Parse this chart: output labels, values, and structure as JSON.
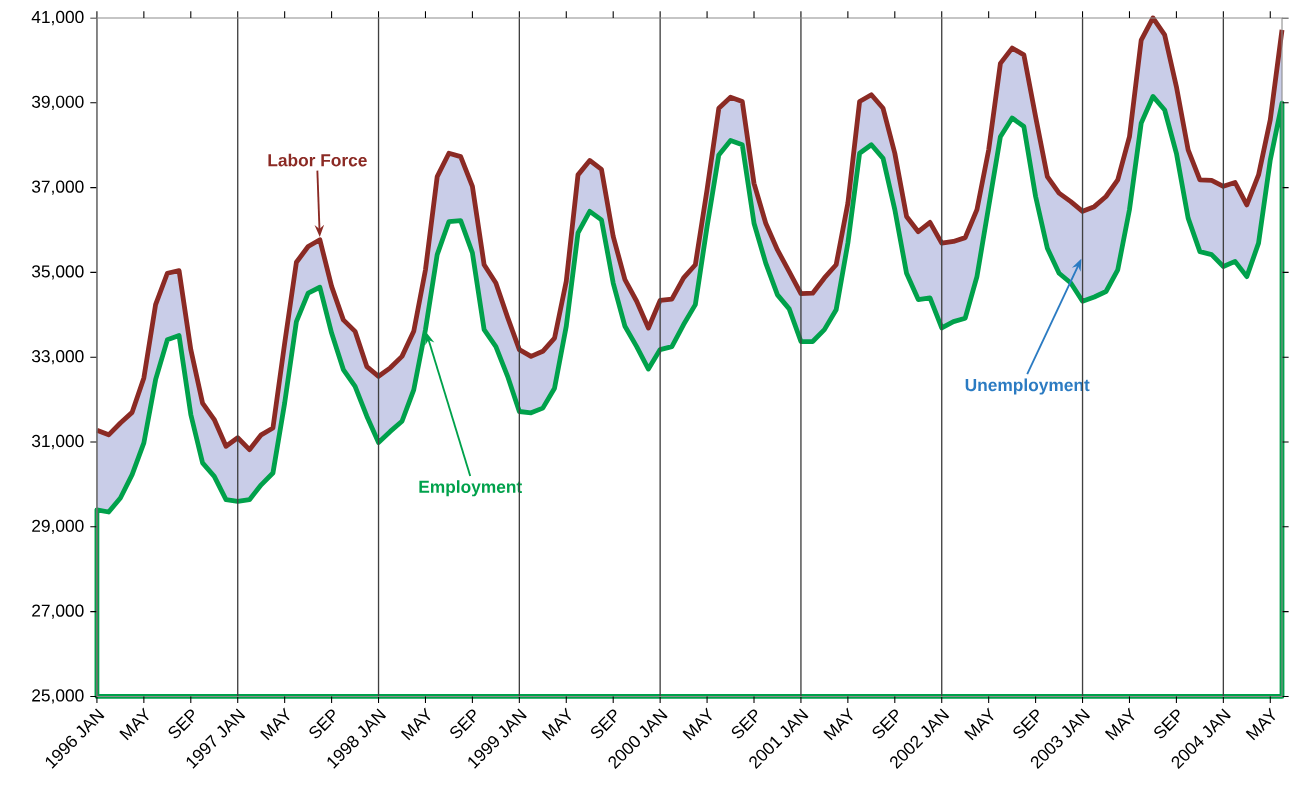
{
  "chart_data": {
    "type": "line",
    "grid": "x",
    "annotations": [
      "Unemployment"
    ],
    "x": [
      "1996-01",
      "1996-02",
      "1996-03",
      "1996-04",
      "1996-05",
      "1996-06",
      "1996-07",
      "1996-08",
      "1996-09",
      "1996-10",
      "1996-11",
      "1996-12",
      "1997-01",
      "1997-02",
      "1997-03",
      "1997-04",
      "1997-05",
      "1997-06",
      "1997-07",
      "1997-08",
      "1997-09",
      "1997-10",
      "1997-11",
      "1997-12",
      "1998-01",
      "1998-02",
      "1998-03",
      "1998-04",
      "1998-05",
      "1998-06",
      "1998-07",
      "1998-08",
      "1998-09",
      "1998-10",
      "1998-11",
      "1998-12",
      "1999-01",
      "1999-02",
      "1999-03",
      "1999-04",
      "1999-05",
      "1999-06",
      "1999-07",
      "1999-08",
      "1999-09",
      "1999-10",
      "1999-11",
      "1999-12",
      "2000-01",
      "2000-02",
      "2000-03",
      "2000-04",
      "2000-05",
      "2000-06",
      "2000-07",
      "2000-08",
      "2000-09",
      "2000-10",
      "2000-11",
      "2000-12",
      "2001-01",
      "2001-02",
      "2001-03",
      "2001-04",
      "2001-05",
      "2001-06",
      "2001-07",
      "2001-08",
      "2001-09",
      "2001-10",
      "2001-11",
      "2001-12",
      "2002-01",
      "2002-02",
      "2002-03",
      "2002-04",
      "2002-05",
      "2002-06",
      "2002-07",
      "2002-08",
      "2002-09",
      "2002-10",
      "2002-11",
      "2002-12",
      "2003-01",
      "2003-02",
      "2003-03",
      "2003-04",
      "2003-05",
      "2003-06",
      "2003-07",
      "2003-08",
      "2003-09",
      "2003-10",
      "2003-11",
      "2003-12",
      "2004-01",
      "2004-02",
      "2004-03",
      "2004-04",
      "2004-05",
      "2004-06"
    ],
    "series": [
      {
        "name": "Employment",
        "type": "area",
        "color": "#00a14b",
        "values": [
          29400,
          29350,
          29680,
          30230,
          30980,
          32470,
          33410,
          33510,
          31650,
          30510,
          30190,
          29640,
          29600,
          29640,
          29990,
          30270,
          31920,
          33840,
          34510,
          34650,
          33570,
          32710,
          32310,
          31610,
          30990,
          31250,
          31490,
          32230,
          33650,
          35420,
          36200,
          36220,
          35460,
          33650,
          33250,
          32550,
          31720,
          31690,
          31800,
          32270,
          33730,
          35930,
          36440,
          36240,
          34750,
          33730,
          33250,
          32720,
          33180,
          33250,
          33770,
          34240,
          36080,
          37770,
          38110,
          38010,
          36160,
          35220,
          34470,
          34140,
          33370,
          33370,
          33650,
          34120,
          35690,
          37810,
          38010,
          37690,
          36480,
          34980,
          34360,
          34400,
          33690,
          33840,
          33920,
          34900,
          36550,
          38200,
          38640,
          38440,
          36790,
          35570,
          34980,
          34750,
          34320,
          34420,
          34550,
          35060,
          36480,
          38520,
          39150,
          38830,
          37810,
          36280,
          35490,
          35420,
          35140,
          35260,
          34900,
          35690,
          37650,
          38990
        ]
      },
      {
        "name": "Labor Force",
        "color": "#8b2a24",
        "values": [
          31280,
          31170,
          31450,
          31700,
          32510,
          34240,
          34980,
          35040,
          33180,
          31920,
          31530,
          30900,
          31100,
          30820,
          31170,
          31330,
          33330,
          35240,
          35610,
          35770,
          34670,
          33880,
          33610,
          32780,
          32550,
          32750,
          33020,
          33610,
          35060,
          37260,
          37810,
          37730,
          37030,
          35180,
          34750,
          33940,
          33180,
          33020,
          33140,
          33450,
          34790,
          37300,
          37640,
          37430,
          35850,
          34830,
          34320,
          33690,
          34340,
          34370,
          34870,
          35180,
          36950,
          38870,
          39130,
          39030,
          37100,
          36160,
          35530,
          35020,
          34500,
          34510,
          34870,
          35180,
          36630,
          39030,
          39190,
          38870,
          37810,
          36320,
          35960,
          36180,
          35690,
          35730,
          35820,
          36480,
          37890,
          39930,
          40290,
          40130,
          38670,
          37260,
          36870,
          36670,
          36440,
          36550,
          36790,
          37180,
          38200,
          40480,
          41000,
          40600,
          39380,
          37890,
          37180,
          37170,
          37030,
          37120,
          36590,
          37300,
          38600,
          40720
        ],
        "lower": [
          29400,
          29350,
          29680,
          30230,
          30980,
          32470,
          33410,
          33510,
          31650,
          30510,
          30190,
          29640,
          29600,
          29640,
          29990,
          30270,
          31920,
          33840,
          34510,
          34650,
          33570,
          32710,
          32310,
          31610,
          30990,
          31250,
          31490,
          32230,
          33650,
          35420,
          36200,
          36220,
          35460,
          33650,
          33250,
          32550,
          31720,
          31690,
          31800,
          32270,
          33730,
          35930,
          36440,
          36240,
          34750,
          33730,
          33250,
          32720,
          33180,
          33250,
          33770,
          34240,
          36080,
          37770,
          38110,
          38010,
          36160,
          35220,
          34470,
          34140,
          33370,
          33370,
          33650,
          34120,
          35690,
          37810,
          38010,
          37690,
          36480,
          34980,
          34360,
          34400,
          33690,
          33840,
          33920,
          34900,
          36550,
          38200,
          38640,
          38440,
          36790,
          35570,
          34980,
          34750,
          34320,
          34420,
          34550,
          35060,
          36480,
          38520,
          39150,
          38830,
          37810,
          36280,
          35490,
          35420,
          35140,
          35260,
          34900,
          35690,
          37650,
          38990
        ],
        "upper": [
          31280,
          31170,
          31450,
          31700,
          32510,
          34240,
          34980,
          35040,
          33180,
          31920,
          31530,
          30900,
          31100,
          30820,
          31170,
          31330,
          33330,
          35240,
          35610,
          35770,
          34670,
          33880,
          33610,
          32780,
          32550,
          32750,
          33020,
          33610,
          35060,
          37260,
          37810,
          37730,
          37030,
          35180,
          34750,
          33940,
          33180,
          33020,
          33140,
          33450,
          34790,
          37300,
          37640,
          37430,
          35850,
          34830,
          34320,
          33690,
          34340,
          34370,
          34870,
          35180,
          36950,
          38870,
          39130,
          39030,
          37100,
          36160,
          35530,
          35020,
          34500,
          34510,
          34870,
          35180,
          36630,
          39030,
          39190,
          38870,
          37810,
          36320,
          35960,
          36180,
          35690,
          35730,
          35820,
          36480,
          37890,
          39930,
          40290,
          40130,
          38670,
          37260,
          36870,
          36670,
          36440,
          36550,
          36790,
          37180,
          38200,
          40480,
          41000,
          40600,
          39380,
          37890,
          37180,
          37170,
          37030,
          37120,
          36590,
          37300,
          38600,
          40720
        ]
      }
    ],
    "xlim": [
      "1996-01",
      "2004-06"
    ],
    "xticks": [
      {
        "value": "1996-01",
        "label": "1996 JAN"
      },
      {
        "value": "1996-05",
        "label": "MAY"
      },
      {
        "value": "1996-09",
        "label": "SEP"
      },
      {
        "value": "1997-01",
        "label": "1997 JAN"
      },
      {
        "value": "1997-05",
        "label": "MAY"
      },
      {
        "value": "1997-09",
        "label": "SEP"
      },
      {
        "value": "1998-01",
        "label": "1998 JAN"
      },
      {
        "value": "1998-05",
        "label": "MAY"
      },
      {
        "value": "1998-09",
        "label": "SEP"
      },
      {
        "value": "1999-01",
        "label": "1999 JAN"
      },
      {
        "value": "1999-05",
        "label": "MAY"
      },
      {
        "value": "1999-09",
        "label": "SEP"
      },
      {
        "value": "2000-01",
        "label": "2000 JAN"
      },
      {
        "value": "2000-05",
        "label": "MAY"
      },
      {
        "value": "2000-09",
        "label": "SEP"
      },
      {
        "value": "2001-01",
        "label": "2001 JAN"
      },
      {
        "value": "2001-05",
        "label": "MAY"
      },
      {
        "value": "2001-09",
        "label": "SEP"
      },
      {
        "value": "2002-01",
        "label": "2002 JAN"
      },
      {
        "value": "2002-05",
        "label": "MAY"
      },
      {
        "value": "2002-09",
        "label": "SEP"
      },
      {
        "value": "2003-01",
        "label": "2003 JAN"
      },
      {
        "value": "2003-05",
        "label": "MAY"
      },
      {
        "value": "2003-09",
        "label": "SEP"
      },
      {
        "value": "2004-01",
        "label": "2004 JAN"
      },
      {
        "value": "2004-05",
        "label": "MAY"
      }
    ],
    "ylim": [
      25000,
      41000
    ],
    "yticks": [
      {
        "value": 25000,
        "label": "25,000"
      },
      {
        "value": 27000,
        "label": "27,000"
      },
      {
        "value": 29000,
        "label": "29,000"
      },
      {
        "value": 31000,
        "label": "31,000"
      },
      {
        "value": 33000,
        "label": "33,000"
      },
      {
        "value": 35000,
        "label": "35,000"
      },
      {
        "value": 37000,
        "label": "37,000"
      },
      {
        "value": 39000,
        "label": "39,000"
      },
      {
        "value": 41000,
        "label": "41,000"
      }
    ]
  }
}
